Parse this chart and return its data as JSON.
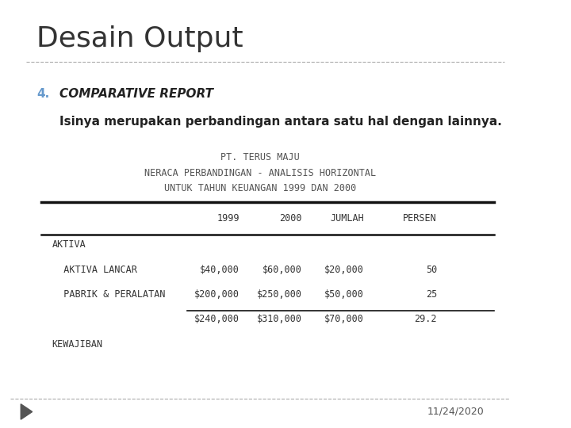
{
  "title": "Desain Output",
  "bg_color": "#ffffff",
  "title_color": "#333333",
  "title_fontsize": 26,
  "title_font": "DejaVu Sans",
  "section_number": "4.",
  "section_number_color": "#6699cc",
  "section_heading": "COMPARATIVE REPORT",
  "section_desc": "Isinya merupakan perbandingan antara satu hal dengan lainnya.",
  "table_title1": "PT. TERUS MAJU",
  "table_title2": "NERACA PERBANDINGAN - ANALISIS HORIZONTAL",
  "table_title3": "UNTUK TAHUN KEUANGAN 1999 DAN 2000",
  "table_headers": [
    "",
    "1999",
    "2000",
    "JUMLAH",
    "PERSEN"
  ],
  "table_rows": [
    [
      "AKTIVA",
      "",
      "",
      "",
      ""
    ],
    [
      "  AKTIVA LANCAR",
      "$40,000",
      "$60,000",
      "$20,000",
      "50"
    ],
    [
      "  PABRIK & PERALATAN",
      "$200,000",
      "$250,000",
      "$50,000",
      "25"
    ],
    [
      "",
      "$240,000",
      "$310,000",
      "$70,000",
      "29.2"
    ],
    [
      "KEWAJIBAN",
      "",
      "",
      "",
      ""
    ]
  ],
  "footer_date": "11/24/2020",
  "arrow_color": "#555555",
  "dashed_line_color": "#aaaaaa",
  "table_font": "monospace",
  "table_fontsize": 8.5
}
